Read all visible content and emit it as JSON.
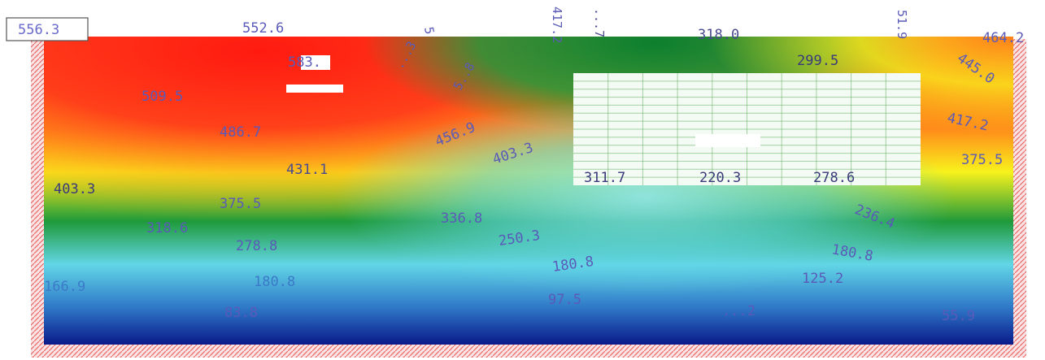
{
  "colors": {
    "red": "#ff2a1a",
    "orange": "#ff8a1a",
    "yellow": "#f8f21c",
    "green": "#1f9a3a",
    "darkgreen": "#0c7f2e",
    "cyan": "#62d6e6",
    "blue": "#2f78c8",
    "navy": "#0a1a8a",
    "hatch": "#e86a6a"
  },
  "max_value": "556.3",
  "labels": [
    "552.6",
    "5",
    "417.2",
    "...7",
    "318.0",
    "51.9",
    "464.2",
    "583.",
    "...3",
    "5..8",
    "299.5",
    "445.0",
    "509.5",
    "456.9",
    "417.2",
    "486.7",
    "403.3",
    "375.5",
    "431.1",
    "403.3",
    "311.7",
    "220.3",
    "278.6",
    "375.5",
    "318.6",
    "336.8",
    "236.4",
    "278.8",
    "250.3",
    "180.8",
    "180.8",
    "125.2",
    "166.9",
    "180.8",
    "83.8",
    "97.5",
    "...2",
    "55.9"
  ]
}
